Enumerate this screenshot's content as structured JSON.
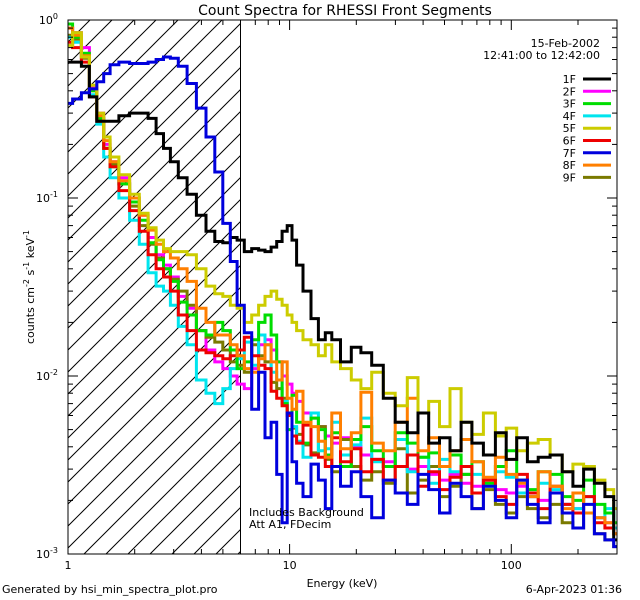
{
  "chart_data": {
    "type": "line",
    "title": "Count Spectra for RHESSI Front Segments",
    "xlabel": "Energy (keV)",
    "ylabel": "counts cm^-2 s^-1 keV^-1",
    "xscale": "log",
    "yscale": "log",
    "xlim": [
      1.0,
      300.0
    ],
    "ylim": [
      0.001,
      1.0
    ],
    "x_ticks": [
      {
        "value": 1,
        "label": "1"
      },
      {
        "value": 10,
        "label": "10"
      },
      {
        "value": 100,
        "label": "100"
      }
    ],
    "y_ticks": [
      {
        "value": 1,
        "label": "10",
        "exp": "0"
      },
      {
        "value": 0.1,
        "label": "10",
        "exp": "-1"
      },
      {
        "value": 0.01,
        "label": "10",
        "exp": "-2"
      },
      {
        "value": 0.001,
        "label": "10",
        "exp": "-3"
      }
    ],
    "date": "15-Feb-2002",
    "time_range": "12:41:00 to 12:42:00",
    "attenuator_cutoff_kev": 6,
    "annotation_lines": [
      "Includes Background",
      "Att A1, FDecim"
    ],
    "legend_position": "top-right",
    "series": [
      {
        "name": "1F",
        "color": "#000000"
      },
      {
        "name": "2F",
        "color": "#ff00ff"
      },
      {
        "name": "3F",
        "color": "#00dd00"
      },
      {
        "name": "4F",
        "color": "#00e5ee"
      },
      {
        "name": "5F",
        "color": "#cccc00"
      },
      {
        "name": "6F",
        "color": "#ee0000"
      },
      {
        "name": "7F",
        "color": "#0000dd"
      },
      {
        "name": "8F",
        "color": "#ff7f00"
      },
      {
        "name": "9F",
        "color": "#7a7a00"
      }
    ],
    "draw_order": [
      "2F",
      "9F",
      "4F",
      "3F",
      "6F",
      "8F",
      "5F",
      "1F",
      "7F"
    ],
    "energy_kev": [
      1.0,
      1.1,
      1.2,
      1.3,
      1.4,
      1.5,
      1.6,
      1.8,
      2.0,
      2.2,
      2.4,
      2.6,
      2.8,
      3.0,
      3.3,
      3.6,
      4.0,
      4.4,
      4.8,
      5.2,
      5.6,
      6.0,
      6.5,
      7.0,
      7.5,
      8.0,
      8.5,
      9.0,
      9.5,
      10.0,
      10.5,
      11.0,
      12.0,
      13.0,
      14.0,
      15.0,
      16.0,
      18.0,
      20.0,
      22.0,
      25.0,
      28.0,
      32.0,
      36.0,
      40.0,
      45.0,
      50.0,
      56.0,
      63.0,
      70.0,
      80.0,
      90.0,
      100.0,
      112.0,
      125.0,
      140.0,
      160.0,
      180.0,
      200.0,
      225.0,
      250.0,
      280.0,
      300.0
    ],
    "counts": {
      "1F": [
        0.58,
        0.58,
        0.55,
        0.37,
        0.27,
        0.27,
        0.27,
        0.29,
        0.3,
        0.3,
        0.28,
        0.23,
        0.19,
        0.16,
        0.13,
        0.105,
        0.08,
        0.065,
        0.057,
        0.056,
        0.06,
        0.058,
        0.05,
        0.052,
        0.051,
        0.05,
        0.053,
        0.057,
        0.065,
        0.07,
        0.058,
        0.042,
        0.03,
        0.021,
        0.016,
        0.0175,
        0.016,
        0.012,
        0.0145,
        0.0135,
        0.0115,
        0.0075,
        0.0055,
        0.0048,
        0.0062,
        0.0042,
        0.0045,
        0.0038,
        0.0055,
        0.0042,
        0.0036,
        0.0048,
        0.0034,
        0.0045,
        0.0033,
        0.0035,
        0.0036,
        0.0029,
        0.0024,
        0.003,
        0.0025,
        0.0021,
        0.0012
      ],
      "2F": [
        0.9,
        0.85,
        0.7,
        0.42,
        0.3,
        0.2,
        0.16,
        0.13,
        0.1,
        0.08,
        0.06,
        0.048,
        0.042,
        0.036,
        0.028,
        0.024,
        0.018,
        0.014,
        0.012,
        0.011,
        0.01,
        0.009,
        0.0085,
        0.011,
        0.015,
        0.016,
        0.014,
        0.012,
        0.01,
        0.009,
        0.008,
        0.0072,
        0.0062,
        0.0058,
        0.0052,
        0.0046,
        0.0042,
        0.0045,
        0.004,
        0.0036,
        0.0034,
        0.0033,
        0.0031,
        0.003,
        0.0031,
        0.0028,
        0.0026,
        0.0028,
        0.0025,
        0.0024,
        0.0026,
        0.0023,
        0.0022,
        0.0024,
        0.0021,
        0.002,
        0.0022,
        0.0019,
        0.0018,
        0.0017,
        0.0016,
        0.0015,
        0.0014
      ],
      "3F": [
        0.95,
        0.8,
        0.65,
        0.4,
        0.28,
        0.19,
        0.15,
        0.12,
        0.095,
        0.075,
        0.056,
        0.045,
        0.04,
        0.034,
        0.026,
        0.022,
        0.018,
        0.017,
        0.02,
        0.018,
        0.014,
        0.011,
        0.012,
        0.016,
        0.02,
        0.022,
        0.017,
        0.012,
        0.007,
        0.005,
        0.0078,
        0.0055,
        0.0042,
        0.0058,
        0.005,
        0.0036,
        0.0048,
        0.0031,
        0.0044,
        0.0052,
        0.0038,
        0.0031,
        0.0048,
        0.0042,
        0.0035,
        0.0037,
        0.0031,
        0.0036,
        0.0028,
        0.0033,
        0.0025,
        0.0031,
        0.0038,
        0.0026,
        0.0023,
        0.0029,
        0.0028,
        0.0021,
        0.002,
        0.0026,
        0.0019,
        0.0017,
        0.0015
      ],
      "4F": [
        0.8,
        0.75,
        0.62,
        0.38,
        0.26,
        0.17,
        0.13,
        0.1,
        0.075,
        0.055,
        0.038,
        0.032,
        0.03,
        0.025,
        0.019,
        0.015,
        0.0095,
        0.008,
        0.007,
        0.0085,
        0.011,
        0.0125,
        0.0155,
        0.0115,
        0.017,
        0.015,
        0.0105,
        0.0095,
        0.0072,
        0.0062,
        0.0052,
        0.0043,
        0.0035,
        0.0062,
        0.0038,
        0.0039,
        0.0055,
        0.0036,
        0.0041,
        0.0058,
        0.0033,
        0.0031,
        0.0044,
        0.0029,
        0.0035,
        0.0025,
        0.0034,
        0.0029,
        0.0031,
        0.0028,
        0.0024,
        0.0029,
        0.0027,
        0.0022,
        0.0021,
        0.0025,
        0.0023,
        0.0019,
        0.0018,
        0.0021,
        0.0016,
        0.0018,
        0.0014
      ],
      "5F": [
        0.72,
        0.85,
        0.62,
        0.43,
        0.3,
        0.22,
        0.17,
        0.135,
        0.105,
        0.082,
        0.068,
        0.058,
        0.052,
        0.05,
        0.05,
        0.048,
        0.04,
        0.032,
        0.029,
        0.028,
        0.025,
        0.024,
        0.02,
        0.022,
        0.025,
        0.028,
        0.03,
        0.027,
        0.025,
        0.022,
        0.02,
        0.018,
        0.016,
        0.015,
        0.013,
        0.015,
        0.012,
        0.011,
        0.0095,
        0.0085,
        0.0105,
        0.008,
        0.0068,
        0.0098,
        0.0062,
        0.0072,
        0.0052,
        0.0085,
        0.0055,
        0.0047,
        0.0062,
        0.0046,
        0.0051,
        0.0038,
        0.0042,
        0.0044,
        0.0036,
        0.0029,
        0.0032,
        0.0031,
        0.0026,
        0.0023,
        0.0018
      ],
      "6F": [
        0.75,
        0.7,
        0.58,
        0.37,
        0.27,
        0.19,
        0.15,
        0.11,
        0.085,
        0.065,
        0.048,
        0.04,
        0.036,
        0.03,
        0.022,
        0.018,
        0.014,
        0.0135,
        0.013,
        0.0125,
        0.013,
        0.014,
        0.0165,
        0.013,
        0.0115,
        0.011,
        0.0082,
        0.0075,
        0.0068,
        0.006,
        0.0046,
        0.0042,
        0.0053,
        0.0036,
        0.0035,
        0.0031,
        0.0045,
        0.0033,
        0.0039,
        0.0029,
        0.0034,
        0.0026,
        0.0031,
        0.0036,
        0.0024,
        0.0029,
        0.0023,
        0.0027,
        0.0031,
        0.0022,
        0.0026,
        0.0021,
        0.0019,
        0.0028,
        0.0022,
        0.0018,
        0.0024,
        0.0019,
        0.0017,
        0.0021,
        0.0015,
        0.0014,
        0.0013
      ],
      "7F": [
        0.34,
        0.36,
        0.39,
        0.41,
        0.45,
        0.5,
        0.56,
        0.58,
        0.57,
        0.57,
        0.58,
        0.6,
        0.62,
        0.61,
        0.55,
        0.44,
        0.32,
        0.22,
        0.14,
        0.072,
        0.044,
        0.025,
        0.0175,
        0.0065,
        0.0105,
        0.0045,
        0.0055,
        0.0028,
        0.0015,
        0.0062,
        0.0033,
        0.0025,
        0.0021,
        0.0032,
        0.0026,
        0.0018,
        0.0031,
        0.0024,
        0.0029,
        0.0021,
        0.0016,
        0.0026,
        0.0022,
        0.0019,
        0.0028,
        0.0023,
        0.0017,
        0.0025,
        0.0021,
        0.0018,
        0.0024,
        0.002,
        0.0016,
        0.0026,
        0.0019,
        0.0015,
        0.0022,
        0.0017,
        0.0014,
        0.0019,
        0.0013,
        0.0012,
        0.0011
      ],
      "8F": [
        0.9,
        0.82,
        0.63,
        0.41,
        0.29,
        0.21,
        0.16,
        0.125,
        0.1,
        0.08,
        0.066,
        0.055,
        0.05,
        0.046,
        0.04,
        0.034,
        0.024,
        0.02,
        0.017,
        0.017,
        0.015,
        0.013,
        0.011,
        0.0105,
        0.0125,
        0.015,
        0.012,
        0.0095,
        0.012,
        0.0075,
        0.0065,
        0.0082,
        0.0055,
        0.0052,
        0.0043,
        0.0035,
        0.0062,
        0.0039,
        0.0048,
        0.0081,
        0.0042,
        0.0038,
        0.0055,
        0.0075,
        0.0038,
        0.0045,
        0.0031,
        0.0038,
        0.0044,
        0.0033,
        0.0027,
        0.0035,
        0.0028,
        0.0025,
        0.0021,
        0.0029,
        0.0024,
        0.0018,
        0.0022,
        0.0017,
        0.0016,
        0.0015,
        0.0013
      ],
      "9F": [
        0.82,
        0.78,
        0.61,
        0.4,
        0.28,
        0.19,
        0.155,
        0.12,
        0.09,
        0.07,
        0.055,
        0.046,
        0.04,
        0.035,
        0.03,
        0.025,
        0.018,
        0.0165,
        0.0155,
        0.014,
        0.012,
        0.0115,
        0.0105,
        0.015,
        0.013,
        0.012,
        0.0092,
        0.0085,
        0.0075,
        0.0062,
        0.0051,
        0.0047,
        0.0041,
        0.0037,
        0.0052,
        0.0034,
        0.0029,
        0.0044,
        0.0031,
        0.0026,
        0.0029,
        0.0025,
        0.0039,
        0.0022,
        0.0026,
        0.0031,
        0.0021,
        0.0024,
        0.0028,
        0.0018,
        0.0023,
        0.0019,
        0.0017,
        0.0021,
        0.0018,
        0.0016,
        0.0019,
        0.0015,
        0.0014,
        0.0017,
        0.0013,
        0.0012,
        0.0011
      ]
    }
  },
  "footer": {
    "generated_by": "Generated by hsi_min_spectra_plot.pro",
    "run_date": "6-Apr-2023 01:36"
  }
}
